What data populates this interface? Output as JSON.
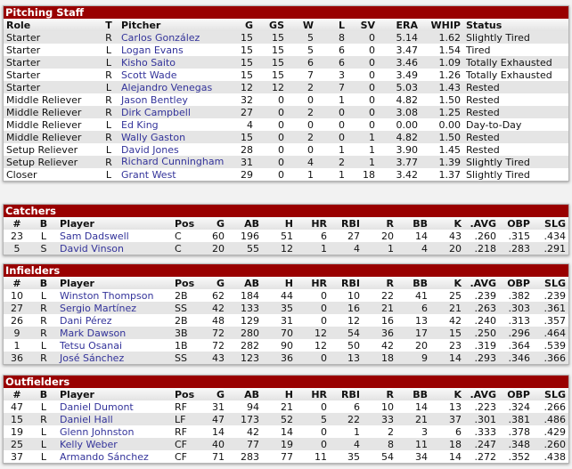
{
  "pitching": {
    "title": "Pitching Staff",
    "headers": [
      "Role",
      "T",
      "Pitcher",
      "G",
      "GS",
      "W",
      "L",
      "SV",
      "ERA",
      "WHIP",
      "Status"
    ],
    "rows": [
      [
        "Starter",
        "R",
        "Carlos González",
        "15",
        "15",
        "5",
        "8",
        "0",
        "5.14",
        "1.62",
        "Slightly Tired"
      ],
      [
        "Starter",
        "L",
        "Logan Evans",
        "15",
        "15",
        "5",
        "6",
        "0",
        "3.47",
        "1.54",
        "Tired"
      ],
      [
        "Starter",
        "L",
        "Kisho Saito",
        "15",
        "15",
        "6",
        "6",
        "0",
        "3.46",
        "1.09",
        "Totally Exhausted"
      ],
      [
        "Starter",
        "R",
        "Scott Wade",
        "15",
        "15",
        "7",
        "3",
        "0",
        "3.49",
        "1.26",
        "Totally Exhausted"
      ],
      [
        "Starter",
        "L",
        "Alejandro Venegas",
        "12",
        "12",
        "2",
        "7",
        "0",
        "5.03",
        "1.43",
        "Rested"
      ],
      [
        "Middle Reliever",
        "R",
        "Jason Bentley",
        "32",
        "0",
        "0",
        "1",
        "0",
        "4.82",
        "1.50",
        "Rested"
      ],
      [
        "Middle Reliever",
        "R",
        "Dirk Campbell",
        "27",
        "0",
        "2",
        "0",
        "0",
        "3.08",
        "1.25",
        "Rested"
      ],
      [
        "Middle Reliever",
        "L",
        "Ed King",
        "4",
        "0",
        "0",
        "0",
        "0",
        "0.00",
        "0.00",
        "Day-to-Day"
      ],
      [
        "Middle Reliever",
        "R",
        "Wally Gaston",
        "15",
        "0",
        "2",
        "0",
        "1",
        "4.82",
        "1.50",
        "Rested"
      ],
      [
        "Setup Reliever",
        "L",
        "David Jones",
        "28",
        "0",
        "0",
        "1",
        "1",
        "3.90",
        "1.45",
        "Rested"
      ],
      [
        "Setup Reliever",
        "R",
        "Richard Cunningham",
        "31",
        "0",
        "4",
        "2",
        "1",
        "3.77",
        "1.39",
        "Slightly Tired"
      ],
      [
        "Closer",
        "L",
        "Grant West",
        "29",
        "0",
        "1",
        "1",
        "18",
        "3.42",
        "1.37",
        "Slightly Tired"
      ]
    ]
  },
  "batting_headers": [
    "#",
    "B",
    "Player",
    "Pos",
    "G",
    "AB",
    "H",
    "HR",
    "RBI",
    "R",
    "BB",
    "K",
    ".AVG",
    "OBP",
    "SLG"
  ],
  "catchers": {
    "title": "Catchers",
    "rows": [
      [
        "23",
        "L",
        "Sam Dadswell",
        "C",
        "60",
        "196",
        "51",
        "6",
        "27",
        "20",
        "14",
        "43",
        ".260",
        ".315",
        ".434"
      ],
      [
        "5",
        "S",
        "David Vinson",
        "C",
        "20",
        "55",
        "12",
        "1",
        "4",
        "1",
        "4",
        "20",
        ".218",
        ".283",
        ".291"
      ]
    ]
  },
  "infielders": {
    "title": "Infielders",
    "rows": [
      [
        "10",
        "L",
        "Winston Thompson",
        "2B",
        "62",
        "184",
        "44",
        "0",
        "10",
        "22",
        "41",
        "25",
        ".239",
        ".382",
        ".239"
      ],
      [
        "27",
        "R",
        "Sergio Martínez",
        "SS",
        "42",
        "133",
        "35",
        "0",
        "16",
        "21",
        "6",
        "21",
        ".263",
        ".303",
        ".361"
      ],
      [
        "26",
        "R",
        "Dani Pérez",
        "2B",
        "48",
        "129",
        "31",
        "0",
        "12",
        "16",
        "13",
        "42",
        ".240",
        ".313",
        ".357"
      ],
      [
        "9",
        "R",
        "Mark Dawson",
        "3B",
        "72",
        "280",
        "70",
        "12",
        "54",
        "36",
        "17",
        "15",
        ".250",
        ".296",
        ".464"
      ],
      [
        "1",
        "L",
        "Tetsu Osanai",
        "1B",
        "72",
        "282",
        "90",
        "12",
        "50",
        "42",
        "20",
        "23",
        ".319",
        ".364",
        ".539"
      ],
      [
        "36",
        "R",
        "José Sánchez",
        "SS",
        "43",
        "123",
        "36",
        "0",
        "13",
        "18",
        "9",
        "14",
        ".293",
        ".346",
        ".366"
      ]
    ]
  },
  "outfielders": {
    "title": "Outfielders",
    "rows": [
      [
        "47",
        "L",
        "Daniel Dumont",
        "RF",
        "31",
        "94",
        "21",
        "0",
        "6",
        "10",
        "14",
        "13",
        ".223",
        ".324",
        ".266"
      ],
      [
        "15",
        "R",
        "Daniel Hall",
        "LF",
        "47",
        "173",
        "52",
        "5",
        "22",
        "33",
        "21",
        "37",
        ".301",
        ".381",
        ".486"
      ],
      [
        "19",
        "L",
        "Glenn Johnston",
        "RF",
        "14",
        "42",
        "14",
        "0",
        "1",
        "2",
        "3",
        "6",
        ".333",
        ".378",
        ".429"
      ],
      [
        "25",
        "L",
        "Kelly Weber",
        "CF",
        "40",
        "77",
        "19",
        "0",
        "4",
        "8",
        "11",
        "18",
        ".247",
        ".348",
        ".260"
      ],
      [
        "37",
        "L",
        "Armando Sánchez",
        "CF",
        "71",
        "283",
        "77",
        "11",
        "35",
        "54",
        "34",
        "14",
        ".272",
        ".352",
        ".438"
      ]
    ]
  },
  "colors": {
    "title_bar": "#990000",
    "link": "#33339a",
    "stripe": "#e5e5e5"
  }
}
